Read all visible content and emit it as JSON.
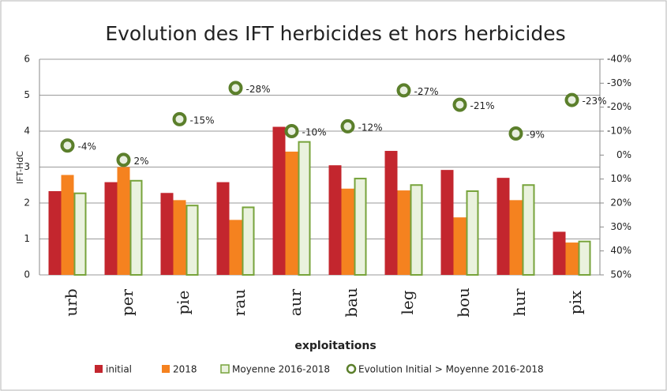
{
  "chart_data": {
    "type": "bar",
    "title": "Evolution des IFT herbicides et hors herbicides",
    "x_label": "exploitations",
    "y_label": "IFT-HdC",
    "categories": [
      "urb",
      "per",
      "pie",
      "rau",
      "aur",
      "bau",
      "leg",
      "bou",
      "hur",
      "pix"
    ],
    "series": [
      {
        "name": "initial",
        "color": "#c3262e",
        "values": [
          2.33,
          2.58,
          2.28,
          2.58,
          4.12,
          3.05,
          3.45,
          2.92,
          2.7,
          1.2
        ]
      },
      {
        "name": "2018",
        "color": "#f5821f",
        "values": [
          2.78,
          3.0,
          2.08,
          1.53,
          3.43,
          2.4,
          2.35,
          1.6,
          2.08,
          0.9
        ]
      },
      {
        "name": "Moyenne 2016-2018",
        "color": "#77a33b",
        "fill": "#eaf2de",
        "values": [
          2.27,
          2.62,
          1.93,
          1.88,
          3.7,
          2.68,
          2.5,
          2.33,
          2.5,
          0.93
        ]
      },
      {
        "name": "Evolution Initial > Moyenne 2016-2018",
        "type": "scatter",
        "axis": "y2",
        "color": "#5b7f2b",
        "values": [
          -4,
          2,
          -15,
          -28,
          -10,
          -12,
          -27,
          -21,
          -9,
          -23
        ],
        "value_labels": [
          "-4%",
          "2%",
          "-15%",
          "-28%",
          "-10%",
          "-12%",
          "-27%",
          "-21%",
          "-9%",
          "-23%"
        ]
      }
    ],
    "ylim": [
      0,
      6
    ],
    "yticks": [
      0,
      1,
      2,
      3,
      4,
      5,
      6
    ],
    "y2lim": [
      50,
      -40
    ],
    "y2ticks": [
      {
        "value": -40,
        "label": "-40%"
      },
      {
        "value": -30,
        "label": "-30%"
      },
      {
        "value": -20,
        "label": "-20%"
      },
      {
        "value": -10,
        "label": "-10%"
      },
      {
        "value": 0,
        "label": "0%"
      },
      {
        "value": 10,
        "label": "10%"
      },
      {
        "value": 20,
        "label": "20%"
      },
      {
        "value": 30,
        "label": "30%"
      },
      {
        "value": 40,
        "label": "40%"
      },
      {
        "value": 50,
        "label": "50%"
      }
    ],
    "grid": true
  }
}
